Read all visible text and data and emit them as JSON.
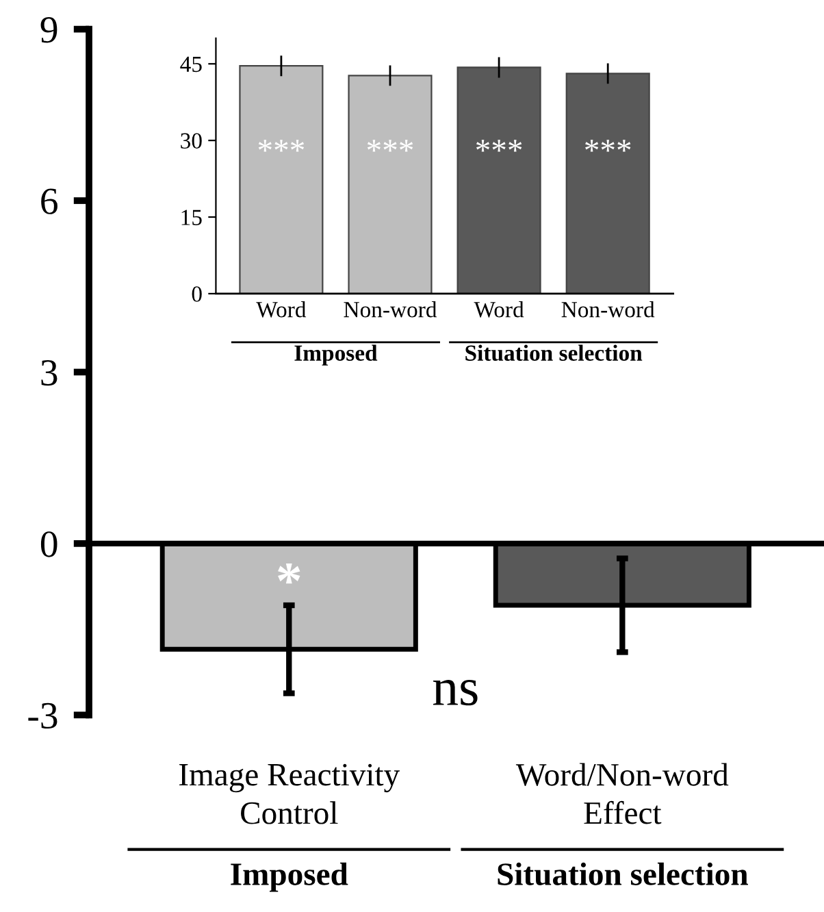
{
  "chart_data": [
    {
      "type": "bar",
      "categories": [
        "Image Reactivity\nControl",
        "Word/Non-word\nEffect"
      ],
      "values": [
        -1.85,
        -1.08
      ],
      "errors": [
        0.77,
        0.82
      ],
      "colors": [
        "#bdbdbd",
        "#595959"
      ],
      "ylim": [
        -3,
        9
      ],
      "yticks": [
        -3,
        0,
        3,
        6,
        9
      ],
      "annotations": [
        "*",
        "ns",
        "Imposed",
        "Situation selection"
      ]
    },
    {
      "type": "bar",
      "categories": [
        "Word",
        "Non-word",
        "Word",
        "Non-word"
      ],
      "values": [
        44.6,
        42.7,
        44.3,
        43.1
      ],
      "errors": [
        2,
        2,
        2,
        2
      ],
      "colors": [
        "#bdbdbd",
        "#bdbdbd",
        "#595959",
        "#595959"
      ],
      "ylim": [
        0,
        50
      ],
      "yticks": [
        0,
        15,
        30,
        45
      ],
      "annotations": [
        "***",
        "***",
        "***",
        "***",
        "Imposed",
        "Situation selection"
      ]
    }
  ]
}
